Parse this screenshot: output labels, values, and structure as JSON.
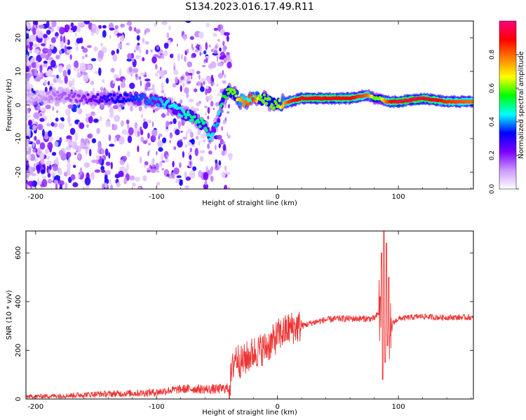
{
  "title": "S134.2023.016.17.49.R11",
  "chart_data": [
    {
      "type": "heatmap",
      "xlabel": "Height of straight line (km)",
      "ylabel": "Frequency (Hz)",
      "xlim": [
        -208,
        162
      ],
      "ylim": [
        -25,
        25
      ],
      "xticks": [
        -200,
        -100,
        0,
        100
      ],
      "yticks": [
        20,
        10,
        0,
        -10,
        -20
      ],
      "colorbar": {
        "label": "Normalized spectral amplitude",
        "range": [
          0,
          1
        ],
        "ticks": [
          "0.0",
          "0.2",
          "0.4",
          "0.6",
          "0.8"
        ],
        "tick_values": [
          0.0,
          0.2,
          0.4,
          0.6,
          0.8
        ],
        "colors": [
          "#ffffff",
          "#cc99ff",
          "#7a00ff",
          "#0000ff",
          "#00ffff",
          "#00ff00",
          "#ffff00",
          "#ff8000",
          "#ff0000",
          "#ff0080"
        ]
      },
      "ridge": {
        "x": [
          -200,
          -180,
          -160,
          -140,
          -120,
          -100,
          -90,
          -80,
          -70,
          -60,
          -55,
          -50,
          -45,
          -40,
          -35,
          -30,
          -25,
          -20,
          -15,
          -10,
          -5,
          0,
          10,
          20,
          40,
          60,
          75,
          80,
          85,
          90,
          95,
          100,
          120,
          140,
          160
        ],
        "frequency": [
          2,
          3,
          2,
          2,
          2,
          1,
          0,
          -2,
          -4,
          -6,
          -10,
          -5,
          2,
          4,
          3,
          1,
          1,
          2,
          2,
          2,
          0,
          0,
          1,
          2,
          2,
          2,
          3,
          2,
          2,
          1,
          1,
          1,
          2,
          1,
          1
        ],
        "amplitude": [
          0.1,
          0.15,
          0.2,
          0.3,
          0.35,
          0.4,
          0.45,
          0.45,
          0.5,
          0.5,
          0.45,
          0.4,
          0.55,
          0.6,
          0.6,
          0.75,
          0.8,
          0.85,
          0.6,
          0.6,
          0.6,
          0.6,
          0.85,
          0.9,
          0.9,
          0.9,
          0.8,
          0.6,
          0.6,
          0.8,
          0.9,
          0.95,
          0.95,
          0.85,
          0.8
        ]
      }
    },
    {
      "type": "line",
      "xlabel": "Height of straight line (km)",
      "ylabel": "SNR (10 * v/v)",
      "xlim": [
        -208,
        162
      ],
      "ylim": [
        0,
        690
      ],
      "xticks": [
        -200,
        -100,
        0,
        100
      ],
      "yticks": [
        0,
        200,
        400,
        600
      ],
      "color": "#ee3333",
      "series": [
        {
          "x": [
            -208,
            -190,
            -170,
            -150,
            -130,
            -110,
            -100,
            -90,
            -80,
            -70,
            -60,
            -50,
            -40,
            -35,
            -30,
            -25,
            -20,
            -15,
            -10,
            -5,
            0,
            10,
            20,
            30,
            40,
            50,
            60,
            70,
            80,
            85,
            88,
            90,
            92,
            95,
            100,
            110,
            120,
            130,
            140,
            150,
            160,
            162
          ],
          "values": [
            10,
            12,
            15,
            20,
            22,
            25,
            28,
            35,
            40,
            42,
            40,
            40,
            45,
            180,
            150,
            170,
            190,
            200,
            210,
            230,
            260,
            290,
            300,
            315,
            325,
            330,
            330,
            330,
            330,
            360,
            450,
            330,
            200,
            310,
            330,
            335,
            340,
            335,
            335,
            335,
            335,
            330
          ]
        }
      ],
      "spikes_visible": {
        "x": [
          85,
          86,
          87,
          88,
          89,
          90,
          91,
          92,
          93
        ],
        "values": [
          420,
          600,
          80,
          690,
          150,
          640,
          220,
          500,
          260
        ]
      }
    }
  ]
}
